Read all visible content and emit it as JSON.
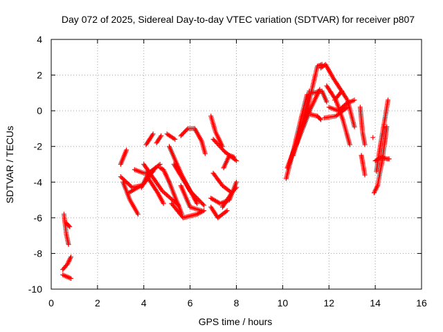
{
  "chart_data": {
    "type": "scatter",
    "title": "Day 072 of 2025, Sidereal Day-to-day VTEC variation (SDTVAR) for receiver p807",
    "xlabel": "GPS time / hours",
    "ylabel": "SDTVAR / TECUs",
    "xlim": [
      0,
      16
    ],
    "ylim": [
      -10,
      4
    ],
    "xticks": [
      "0",
      "2",
      "4",
      "6",
      "8",
      "10",
      "12",
      "14",
      "16"
    ],
    "yticks": [
      "-10",
      "-8",
      "-6",
      "-4",
      "-2",
      "0",
      "2",
      "4"
    ],
    "grid": true,
    "marker": "+",
    "marker_color": "#ff0000",
    "segments": [
      {
        "x": [
          0.55,
          0.65,
          0.75
        ],
        "y": [
          -5.8,
          -6.9,
          -7.5
        ]
      },
      {
        "x": [
          0.65,
          0.8
        ],
        "y": [
          -6.3,
          -6.5
        ]
      },
      {
        "x": [
          0.5,
          0.7,
          0.85
        ],
        "y": [
          -8.9,
          -8.6,
          -8.2
        ]
      },
      {
        "x": [
          0.5,
          0.85
        ],
        "y": [
          -9.2,
          -9.4
        ]
      },
      {
        "x": [
          3.0,
          3.25
        ],
        "y": [
          -3.0,
          -2.2
        ]
      },
      {
        "x": [
          3.0,
          3.5,
          3.9
        ],
        "y": [
          -3.7,
          -4.3,
          -4.2
        ]
      },
      {
        "x": [
          3.1,
          3.4,
          3.75
        ],
        "y": [
          -4.0,
          -5.0,
          -5.8
        ]
      },
      {
        "x": [
          3.35,
          4.0,
          4.5
        ],
        "y": [
          -4.6,
          -4.1,
          -3.2
        ]
      },
      {
        "x": [
          3.6,
          4.0,
          4.4
        ],
        "y": [
          -3.3,
          -3.5,
          -3.4
        ]
      },
      {
        "x": [
          3.9,
          4.2,
          4.7
        ],
        "y": [
          -4.3,
          -3.5,
          -3.0
        ]
      },
      {
        "x": [
          4.0,
          4.8,
          5.5
        ],
        "y": [
          -3.0,
          -4.5,
          -5.3
        ]
      },
      {
        "x": [
          4.2,
          4.6,
          4.85
        ],
        "y": [
          -3.8,
          -4.6,
          -5.2
        ]
      },
      {
        "x": [
          4.7,
          4.85,
          5.1
        ],
        "y": [
          -3.2,
          -3.3,
          -4.0
        ]
      },
      {
        "x": [
          4.1,
          4.4
        ],
        "y": [
          -1.9,
          -1.3
        ]
      },
      {
        "x": [
          4.55,
          4.75
        ],
        "y": [
          -1.8,
          -1.4
        ]
      },
      {
        "x": [
          5.0,
          5.35
        ],
        "y": [
          -1.3,
          -1.6
        ]
      },
      {
        "x": [
          5.1,
          5.6,
          6.3
        ],
        "y": [
          -2.0,
          -3.5,
          -5.2
        ]
      },
      {
        "x": [
          5.3,
          6.0,
          6.6
        ],
        "y": [
          -3.0,
          -4.5,
          -5.3
        ]
      },
      {
        "x": [
          5.2,
          5.7,
          6.3,
          6.6
        ],
        "y": [
          -5.2,
          -6.0,
          -5.8,
          -5.6
        ]
      },
      {
        "x": [
          5.1,
          5.4,
          5.65
        ],
        "y": [
          -4.0,
          -5.0,
          -5.8
        ]
      },
      {
        "x": [
          5.6,
          6.0,
          6.5
        ],
        "y": [
          -4.2,
          -5.4,
          -5.6
        ]
      },
      {
        "x": [
          5.6,
          5.9,
          6.2
        ],
        "y": [
          -1.4,
          -1.0,
          -1.0
        ]
      },
      {
        "x": [
          6.2,
          6.5,
          6.65
        ],
        "y": [
          -1.0,
          -1.7,
          -2.4
        ]
      },
      {
        "x": [
          6.9,
          7.1,
          7.4
        ],
        "y": [
          -0.3,
          -1.2,
          -2.0
        ]
      },
      {
        "x": [
          7.0,
          7.5,
          8.0
        ],
        "y": [
          -1.6,
          -2.3,
          -2.8
        ]
      },
      {
        "x": [
          7.0,
          7.4,
          7.8
        ],
        "y": [
          -3.5,
          -4.2,
          -4.6
        ]
      },
      {
        "x": [
          6.9,
          7.3,
          7.7,
          8.0
        ],
        "y": [
          -4.9,
          -5.2,
          -5.0,
          -4.0
        ]
      },
      {
        "x": [
          6.9,
          7.2,
          7.6
        ],
        "y": [
          -5.4,
          -6.0,
          -5.6
        ]
      },
      {
        "x": [
          7.4,
          7.8,
          8.0
        ],
        "y": [
          -5.4,
          -4.6,
          -4.3
        ]
      },
      {
        "x": [
          7.45,
          7.7,
          7.9
        ],
        "y": [
          -3.2,
          -2.5,
          -2.6
        ]
      },
      {
        "x": [
          10.15,
          10.45,
          10.8,
          11.05
        ],
        "y": [
          -3.8,
          -2.3,
          -0.4,
          0.9
        ]
      },
      {
        "x": [
          10.2,
          10.6,
          10.95,
          11.15
        ],
        "y": [
          -3.2,
          -1.8,
          -0.4,
          1.1
        ]
      },
      {
        "x": [
          10.3,
          10.75,
          11.0
        ],
        "y": [
          -2.9,
          -1.2,
          0.0
        ]
      },
      {
        "x": [
          10.45,
          11.1,
          11.5,
          11.7
        ],
        "y": [
          -2.5,
          0.3,
          2.5,
          2.6
        ]
      },
      {
        "x": [
          10.6,
          11.2,
          11.6
        ],
        "y": [
          -1.9,
          0.1,
          1.2
        ]
      },
      {
        "x": [
          11.3,
          11.7,
          11.9
        ],
        "y": [
          1.0,
          1.1,
          0.5
        ]
      },
      {
        "x": [
          11.2,
          11.5,
          11.65
        ],
        "y": [
          -0.2,
          -0.3,
          -0.5
        ]
      },
      {
        "x": [
          11.65,
          11.85,
          12.2,
          12.5,
          12.8,
          13.1
        ],
        "y": [
          2.4,
          2.6,
          1.8,
          1.2,
          0.6,
          -0.9
        ]
      },
      {
        "x": [
          11.9,
          12.3,
          12.6,
          12.9
        ],
        "y": [
          1.4,
          0.6,
          -0.5,
          -1.9
        ]
      },
      {
        "x": [
          12.0,
          12.4,
          12.75,
          13.1
        ],
        "y": [
          0.2,
          0.0,
          0.4,
          0.6
        ]
      },
      {
        "x": [
          11.8,
          12.3,
          12.8
        ],
        "y": [
          -0.4,
          -0.3,
          0.2
        ]
      },
      {
        "x": [
          12.25,
          12.55
        ],
        "y": [
          0.6,
          1.1
        ]
      },
      {
        "x": [
          13.35,
          13.45,
          13.55
        ],
        "y": [
          0.2,
          -1.2,
          -1.9
        ]
      },
      {
        "x": [
          13.4,
          13.55
        ],
        "y": [
          -2.5,
          -3.6
        ]
      },
      {
        "x": [
          13.9
        ],
        "y": [
          -1.5
        ]
      },
      {
        "x": [
          13.95,
          14.1,
          14.3,
          14.5
        ],
        "y": [
          -4.6,
          -4.2,
          -2.8,
          -0.9
        ]
      },
      {
        "x": [
          14.05,
          14.25,
          14.45,
          14.55
        ],
        "y": [
          -3.4,
          -1.7,
          -0.2,
          0.6
        ]
      },
      {
        "x": [
          14.0,
          14.3,
          14.5,
          14.6
        ],
        "y": [
          -2.8,
          -2.6,
          -2.7,
          -2.7
        ]
      }
    ]
  }
}
